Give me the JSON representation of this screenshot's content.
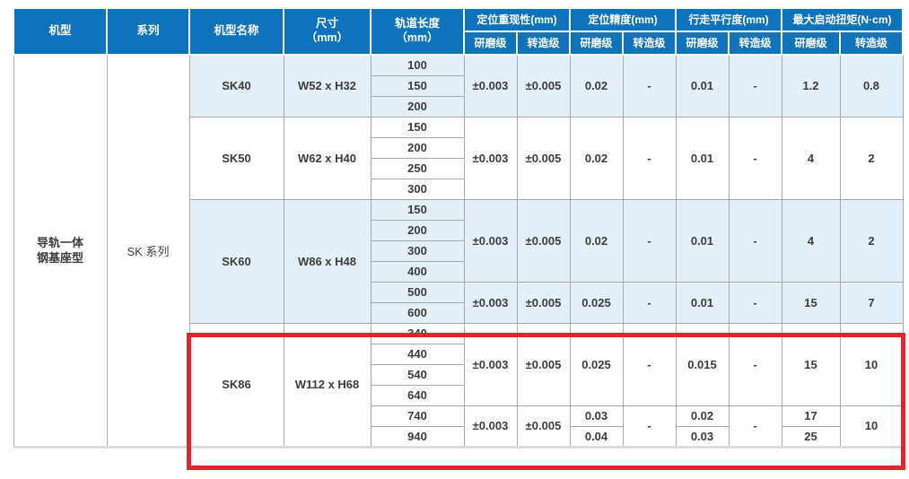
{
  "colors": {
    "header_bg": "#0f73bb",
    "shade": "#e3f0f8",
    "highlight": "#e2232c",
    "grid": "#a9a9a9",
    "text": "#3c3c3c"
  },
  "table": {
    "header": {
      "machine": "机型",
      "series": "系列",
      "model": "机型名称",
      "size": [
        "尺寸",
        "（mm）"
      ],
      "length": [
        "轨道长度",
        "（mm）"
      ],
      "groups": [
        {
          "label": "定位重现性(mm)",
          "sub": [
            "研磨级",
            "转造级"
          ]
        },
        {
          "label": "定位精度(mm)",
          "sub": [
            "研磨级",
            "转造级"
          ]
        },
        {
          "label": "行走平行度(mm)",
          "sub": [
            "研磨级",
            "转造级"
          ]
        },
        {
          "label": "最大启动扭矩(N·cm)",
          "sub": [
            "研磨级",
            "转造级"
          ]
        }
      ]
    },
    "machine_type": [
      "导轨一体",
      "钢基座型"
    ],
    "series": "SK 系列",
    "groups": [
      {
        "model": "SK40",
        "size": "W52 x H32",
        "shaded": true,
        "highlighted": false,
        "blocks": [
          {
            "lengths": [
              "100",
              "150",
              "200"
            ],
            "values": [
              "±0.003",
              "±0.005",
              "0.02",
              "-",
              "0.01",
              "-",
              "1.2",
              "0.8"
            ]
          }
        ]
      },
      {
        "model": "SK50",
        "size": "W62 x H40",
        "shaded": false,
        "highlighted": false,
        "blocks": [
          {
            "lengths": [
              "150",
              "200",
              "250",
              "300"
            ],
            "values": [
              "±0.003",
              "±0.005",
              "0.02",
              "-",
              "0.01",
              "-",
              "4",
              "2"
            ]
          }
        ]
      },
      {
        "model": "SK60",
        "size": "W86 x H48",
        "shaded": true,
        "highlighted": false,
        "blocks": [
          {
            "lengths": [
              "150",
              "200",
              "300",
              "400"
            ],
            "values": [
              "±0.003",
              "±0.005",
              "0.02",
              "-",
              "0.01",
              "-",
              "4",
              "2"
            ]
          },
          {
            "lengths": [
              "500",
              "600"
            ],
            "values": [
              "±0.003",
              "±0.005",
              "0.025",
              "-",
              "0.01",
              "-",
              "15",
              "7"
            ]
          }
        ]
      },
      {
        "model": "SK86",
        "size": "W112 x H68",
        "shaded": false,
        "highlighted": true,
        "blocks": [
          {
            "lengths": [
              "340",
              "440",
              "540",
              "640"
            ],
            "values": [
              "±0.003",
              "±0.005",
              "0.025",
              "-",
              "0.015",
              "-",
              "15",
              "10"
            ]
          },
          {
            "lengths": [
              "740",
              "940"
            ],
            "values": [
              "±0.003",
              "±0.005",
              [
                "0.03",
                "0.04"
              ],
              "-",
              [
                "0.02",
                "0.03"
              ],
              "-",
              [
                "17",
                "25"
              ],
              "10"
            ]
          }
        ]
      }
    ]
  }
}
